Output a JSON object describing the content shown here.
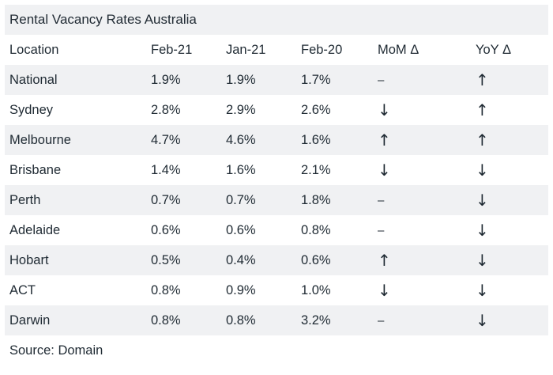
{
  "chart_data": {
    "type": "table",
    "title": "Rental Vacancy Rates Australia",
    "columns": [
      "Location",
      "Feb-21",
      "Jan-21",
      "Feb-20",
      "MoM Δ",
      "YoY Δ"
    ],
    "rows": [
      [
        "National",
        "1.9%",
        "1.9%",
        "1.7%",
        "–",
        "↑"
      ],
      [
        "Sydney",
        "2.8%",
        "2.9%",
        "2.6%",
        "↓",
        "↑"
      ],
      [
        "Melbourne",
        "4.7%",
        "4.6%",
        "1.6%",
        "↑",
        "↑"
      ],
      [
        "Brisbane",
        "1.4%",
        "1.6%",
        "2.1%",
        "↓",
        "↓"
      ],
      [
        "Perth",
        "0.7%",
        "0.7%",
        "1.8%",
        "–",
        "↓"
      ],
      [
        "Adelaide",
        "0.6%",
        "0.6%",
        "0.8%",
        "–",
        "↓"
      ],
      [
        "Hobart",
        "0.5%",
        "0.4%",
        "0.6%",
        "↑",
        "↓"
      ],
      [
        "ACT",
        "0.8%",
        "0.9%",
        "1.0%",
        "↓",
        "↓"
      ],
      [
        "Darwin",
        "0.8%",
        "0.8%",
        "3.2%",
        "–",
        "↓"
      ]
    ],
    "source": "Source: Domain"
  },
  "colors": {
    "stripe": "#f0f1f3",
    "text": "#1f2a33"
  }
}
